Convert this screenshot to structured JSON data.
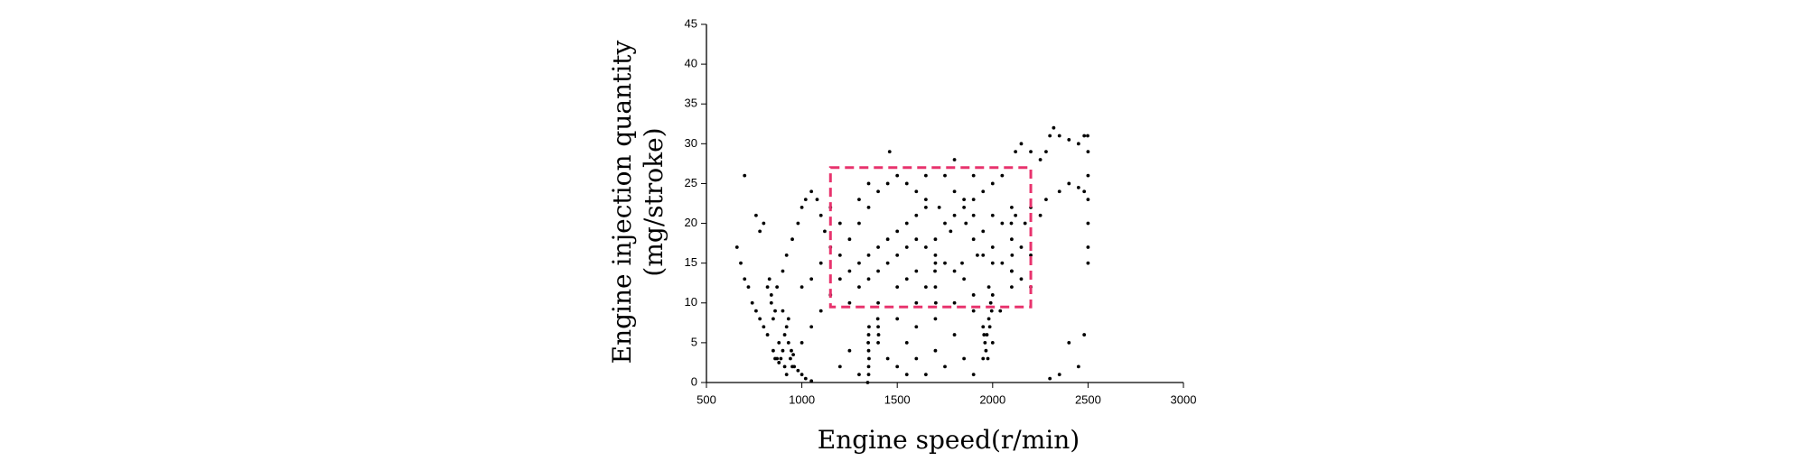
{
  "chart_data": {
    "type": "scatter",
    "x_label": "Engine speed(r/min)",
    "y_label": [
      "Engine injection quantity",
      "(mg/stroke)"
    ],
    "xlim": [
      500,
      3000
    ],
    "xticks": [
      500,
      1000,
      1500,
      2000,
      2500,
      3000
    ],
    "ylim": [
      0,
      45
    ],
    "yticks": [
      0,
      5,
      10,
      15,
      20,
      25,
      30,
      35,
      40,
      45
    ],
    "color": "#000000",
    "highlight": {
      "x": [
        1150,
        2200
      ],
      "y": [
        9.5,
        27
      ],
      "color": "#e8336d"
    },
    "x": [
      660,
      680,
      700,
      720,
      740,
      760,
      780,
      800,
      820,
      700,
      760,
      780,
      800,
      820,
      830,
      840,
      850,
      860,
      870,
      880,
      890,
      900,
      910,
      920,
      930,
      940,
      950,
      960,
      980,
      1000,
      1020,
      1050,
      900,
      910,
      920,
      930,
      945,
      955,
      880,
      860,
      840,
      850,
      870,
      900,
      920,
      950,
      980,
      1000,
      1020,
      1050,
      1080,
      1100,
      1120,
      1150,
      1000,
      1050,
      1100,
      1150,
      1200,
      1345,
      1350,
      1350,
      1352,
      1350,
      1348,
      1350,
      1352,
      1400,
      1402,
      1400,
      1398,
      1200,
      1250,
      1300,
      1450,
      1500,
      1550,
      1600,
      1650,
      1700,
      1750,
      1800,
      1850,
      1900,
      1600,
      1500,
      1550,
      1700,
      1702,
      1700,
      1698,
      1700,
      1950,
      1960,
      1970,
      1980,
      1990,
      2000,
      1965,
      1985,
      1995,
      1955,
      1975,
      1720,
      1780,
      1840,
      1900,
      1950,
      2000,
      1800,
      1860,
      1920,
      1980,
      2040,
      1850,
      1900,
      1950,
      2000,
      2050,
      2100,
      2150,
      2200,
      2100,
      2100,
      2102,
      2100,
      2098,
      2100,
      2120,
      2150,
      2200,
      2250,
      2280,
      2300,
      2320,
      2350,
      2400,
      2450,
      2480,
      2120,
      2170,
      2200,
      2250,
      2280,
      2350,
      2400,
      2450,
      2480,
      2500,
      2500,
      2500,
      2500,
      2500,
      2498,
      2500,
      2300,
      2350,
      2450,
      2480,
      2400,
      1200,
      1250,
      1300,
      1350,
      1400,
      1450,
      1500,
      1550,
      1600,
      1650,
      1250,
      1300,
      1350,
      1400,
      1450,
      1500,
      1550,
      1600,
      1650,
      1300,
      1350,
      1400,
      1450,
      1500,
      1550,
      1600,
      1650,
      1700,
      1750,
      1800,
      1850,
      1500,
      1550,
      1600,
      1650,
      1700,
      1750,
      1800,
      1850,
      1900,
      1950,
      2000,
      2050,
      1460,
      1800,
      1750,
      1900,
      1200,
      1150,
      1100,
      1050,
      1000,
      1250,
      1400,
      1600,
      1800,
      1900,
      2000,
      2150,
      2200,
      2050,
      2000,
      1950,
      1900,
      1350,
      1300,
      1650
    ],
    "values": [
      17,
      15,
      13,
      12,
      10,
      9,
      8,
      7,
      6,
      26,
      21,
      19,
      20,
      12,
      13,
      11,
      4,
      3,
      3,
      2.5,
      3,
      4,
      6,
      7,
      5,
      3,
      2,
      2,
      1.5,
      1,
      0.5,
      0.2,
      9,
      2,
      1,
      8,
      4,
      3.5,
      5,
      9,
      10,
      8,
      12,
      14,
      16,
      18,
      20,
      22,
      23,
      24,
      23,
      21,
      19,
      17,
      5,
      7,
      9,
      11,
      13,
      0,
      1,
      2,
      3,
      4,
      5,
      6,
      7,
      5,
      6,
      7,
      8,
      2,
      4,
      1,
      3,
      2,
      5,
      3,
      1,
      4,
      2,
      6,
      3,
      1,
      7,
      8,
      1,
      8,
      10,
      12,
      14,
      15,
      3,
      5,
      6,
      8,
      10,
      11,
      4,
      7,
      9,
      6,
      3,
      22,
      19,
      15,
      11,
      7,
      5,
      24,
      20,
      16,
      12,
      9,
      23,
      21,
      19,
      17,
      15,
      14,
      13,
      12,
      12,
      14,
      16,
      18,
      20,
      22,
      29,
      30,
      29,
      28,
      29,
      31,
      32,
      31,
      30.5,
      30,
      31,
      21,
      20,
      22,
      21,
      23,
      24,
      25,
      24.5,
      24,
      17,
      20,
      23,
      26,
      29,
      31,
      15,
      0.5,
      1,
      2,
      6,
      5,
      16,
      18,
      20,
      22,
      24,
      25,
      26,
      25,
      24,
      23,
      14,
      15,
      16,
      17,
      18,
      19,
      20,
      21,
      22,
      12,
      13,
      14,
      15,
      16,
      17,
      18,
      17,
      16,
      15,
      14,
      13,
      12,
      13,
      14,
      12,
      18,
      20,
      21,
      22,
      23,
      24,
      25,
      26,
      29,
      28,
      26,
      26,
      20,
      22,
      15,
      13,
      12,
      10,
      10,
      10,
      10,
      9,
      15,
      17,
      16,
      20,
      21,
      16,
      18,
      25,
      23,
      26
    ]
  }
}
